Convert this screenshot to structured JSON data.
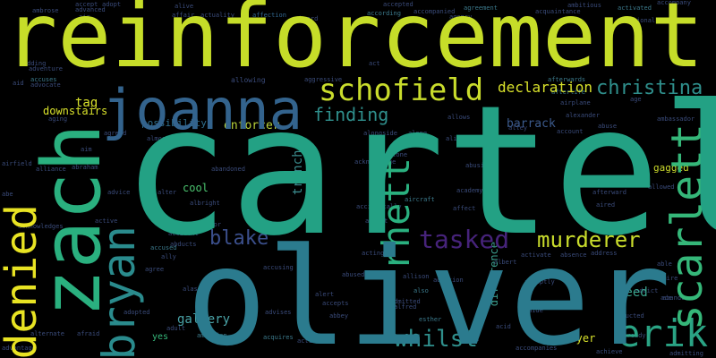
{
  "words": {
    "reinforcement": "reinforcement",
    "cartel": "cartel",
    "oliver": "oliver",
    "zach": "zach",
    "joanna": "joanna",
    "schofield": "schofield",
    "denied": "denied",
    "bryan": "bryan",
    "christina": "christina",
    "scarlett": "scarlett",
    "erik": "erik",
    "rhett": "rhett",
    "tasked": "tasked",
    "murderer": "murderer",
    "whilst": "whilst",
    "blake": "blake",
    "finding": "finding",
    "declaration": "declaration",
    "enforcer": "enforcer",
    "possibility": "possibility",
    "barrack": "barrack",
    "trench": "trench",
    "tag": "tag",
    "downstairs": "downstairs",
    "seed": "seed",
    "gallery": "gallery",
    "cool": "cool",
    "difference": "difference",
    "sawyer": "sawyer",
    "gagged": "gagged"
  },
  "small_words": [
    "accept",
    "adopt",
    "alive",
    "affection",
    "accepted",
    "ambitious",
    "accompany",
    "ambrose",
    "air",
    "advanced",
    "affair",
    "actuality",
    "aboard",
    "according",
    "accompanied",
    "agreement",
    "acquaintance",
    "activated",
    "additional",
    "agency",
    "abduction",
    "afford",
    "act",
    "afterwards",
    "adding",
    "adventure",
    "aid",
    "accuses",
    "advocate",
    "aircraft",
    "alleged",
    "alcoholic",
    "aggressive",
    "allowing",
    "afterlife",
    "airplane",
    "agent",
    "age",
    "aging",
    "allows",
    "alexander",
    "ambassador",
    "airfield",
    "alliance",
    "abraham",
    "aim",
    "account",
    "abuse",
    "alley",
    "almost",
    "agreed",
    "abusive",
    "aboa",
    "actual",
    "acknowledge",
    "academy",
    "affect",
    "afterward",
    "aired",
    "allowed",
    "abe",
    "advice",
    "alter",
    "ability",
    "aliens",
    "accidentally",
    "alibi",
    "alike",
    "alone",
    "albert",
    "absence",
    "adore",
    "activate",
    "abruptly",
    "address",
    "admire",
    "addition",
    "admitted",
    "alfred",
    "aide",
    "abducted",
    "abandon",
    "align",
    "ace",
    "admitting",
    "achieve",
    "alpha",
    "accompanies",
    "already",
    "addict",
    "able",
    "abject",
    "acid",
    "adopted",
    "adult",
    "alas",
    "ally",
    "accused",
    "agree",
    "abandoned",
    "abducts",
    "ambition",
    "acquires",
    "activist",
    "abbey",
    "accepts",
    "allison",
    "also",
    "esther",
    "yes",
    "alternate",
    "afraid",
    "advantage",
    "actor",
    "accident",
    "albright",
    "acquire",
    "active",
    "acknowledges",
    "along",
    "alongside",
    "alive",
    "affairs",
    "abby",
    "acting",
    "absent",
    "abused",
    "advises",
    "accusing",
    "aloud",
    "alerts",
    "aware",
    "alert",
    "joint",
    "abrupt",
    "ado",
    "alternative"
  ]
}
